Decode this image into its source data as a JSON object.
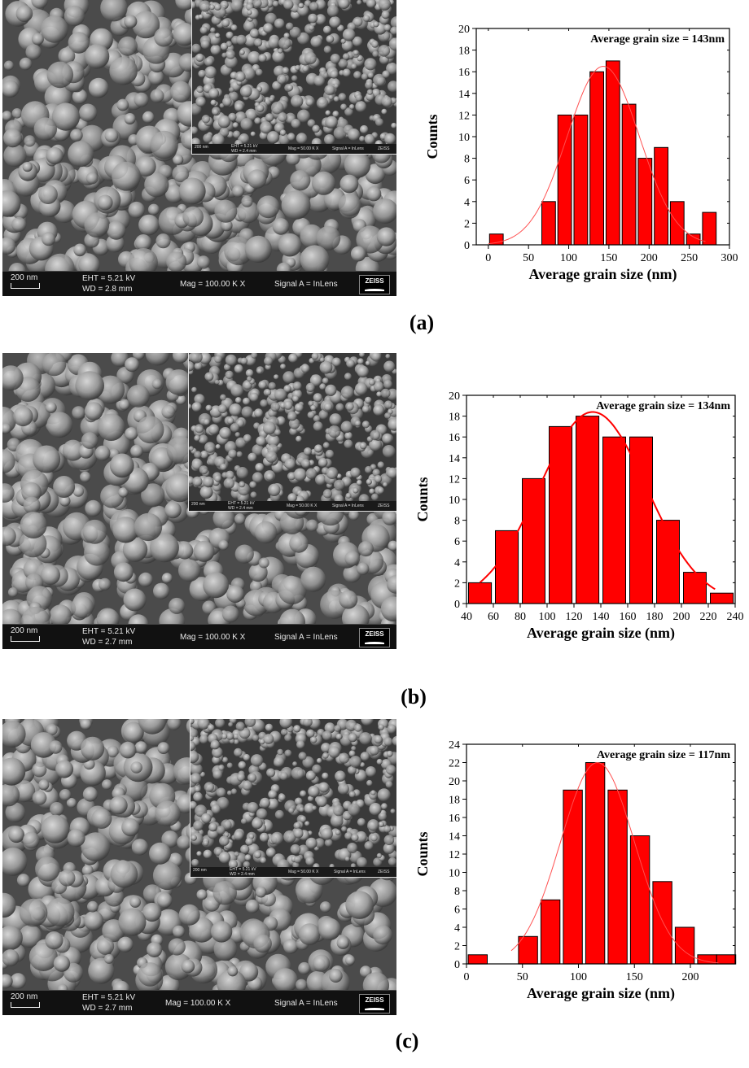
{
  "panels": [
    {
      "label": "(a)",
      "sem": {
        "scale": "200 nm",
        "eht": "EHT =  5.21 kV",
        "wd": "WD =  2.8 mm",
        "mag": "Mag =  100.00 K X",
        "signal": "Signal A = InLens",
        "logo": "ZEISS",
        "inset": {
          "scale": "200 nm",
          "eht": "EHT = 5.21 kV",
          "wd": "WD = 2.4 mm",
          "mag": "Mag = 50.00 K X",
          "signal": "Signal A = InLens",
          "logo": "ZEISS"
        }
      }
    },
    {
      "label": "(b)",
      "sem": {
        "scale": "200 nm",
        "eht": "EHT =  5.21 kV",
        "wd": "WD =  2.7 mm",
        "mag": "Mag =  100.00 K X",
        "signal": "Signal A = InLens",
        "logo": "ZEISS",
        "inset": {
          "scale": "200 nm",
          "eht": "EHT = 5.21 kV",
          "wd": "WD = 2.4 mm",
          "mag": "Mag = 50.00 K X",
          "signal": "Signal A = InLens",
          "logo": "ZEISS"
        }
      }
    },
    {
      "label": "(c)",
      "sem": {
        "scale": "200 nm",
        "eht": "EHT =  5.21 kV",
        "wd": "WD =  2.7 mm",
        "mag": "Mag =  100.00 K X",
        "signal": "Signal A = InLens",
        "logo": "ZEISS",
        "inset": {
          "scale": "200 nm",
          "eht": "EHT = 5.21 kV",
          "wd": "WD = 2.4 mm",
          "mag": "Mag = 50.00 K X",
          "signal": "Signal A = InLens",
          "logo": "ZEISS"
        }
      }
    }
  ],
  "chart_data": [
    {
      "type": "bar",
      "annotation": "Average grain size = 143nm",
      "xlabel": "Average grain size (nm)",
      "ylabel": "Counts",
      "xlim": [
        -15,
        300
      ],
      "ylim": [
        0,
        20
      ],
      "xticks": [
        0,
        50,
        100,
        150,
        200,
        250,
        300
      ],
      "yticks": [
        0,
        2,
        4,
        6,
        8,
        10,
        12,
        14,
        16,
        18,
        20
      ],
      "bar_width": 17,
      "x": [
        10,
        75,
        95,
        115,
        135,
        155,
        175,
        195,
        215,
        235,
        255,
        275
      ],
      "values": [
        1,
        4,
        12,
        12,
        16,
        17,
        13,
        8,
        9,
        4,
        1,
        3
      ],
      "fit": {
        "mean": 143,
        "sigma": 45,
        "amplitude": 16.5,
        "from": 0,
        "to": 270
      },
      "bar_color": "#ff0000",
      "fit_color": "#ff5050"
    },
    {
      "type": "bar",
      "annotation": "Average grain size = 134nm",
      "xlabel": "Average grain size (nm)",
      "ylabel": "Counts",
      "xlim": [
        40,
        240
      ],
      "ylim": [
        0,
        20
      ],
      "xticks": [
        40,
        60,
        80,
        100,
        120,
        140,
        160,
        180,
        200,
        220,
        240
      ],
      "yticks": [
        0,
        2,
        4,
        6,
        8,
        10,
        12,
        14,
        16,
        18,
        20
      ],
      "bar_width": 17,
      "x": [
        50,
        70,
        90,
        110,
        130,
        150,
        170,
        190,
        210,
        230
      ],
      "values": [
        2,
        7,
        12,
        17,
        18,
        16,
        16,
        8,
        3,
        1
      ],
      "fit": {
        "mean": 134,
        "sigma": 40,
        "amplitude": 18.4,
        "from": 50,
        "to": 225
      },
      "bar_color": "#ff0000",
      "fit_color": "#ff0000"
    },
    {
      "type": "bar",
      "annotation": "Average grain size = 117nm",
      "xlabel": "Average grain size (nm)",
      "ylabel": "Counts",
      "xlim": [
        0,
        240
      ],
      "ylim": [
        0,
        24
      ],
      "xticks": [
        0,
        50,
        100,
        150,
        200
      ],
      "yticks": [
        0,
        2,
        4,
        6,
        8,
        10,
        12,
        14,
        16,
        18,
        20,
        22,
        24
      ],
      "bar_width": 17,
      "x": [
        10,
        55,
        75,
        95,
        115,
        135,
        155,
        175,
        195,
        215,
        232
      ],
      "values": [
        1,
        3,
        7,
        19,
        22,
        19,
        14,
        9,
        4,
        1,
        1
      ],
      "fit": {
        "mean": 117,
        "sigma": 33,
        "amplitude": 22,
        "from": 40,
        "to": 225
      },
      "bar_color": "#ff0000",
      "fit_color": "#ff5050"
    }
  ]
}
